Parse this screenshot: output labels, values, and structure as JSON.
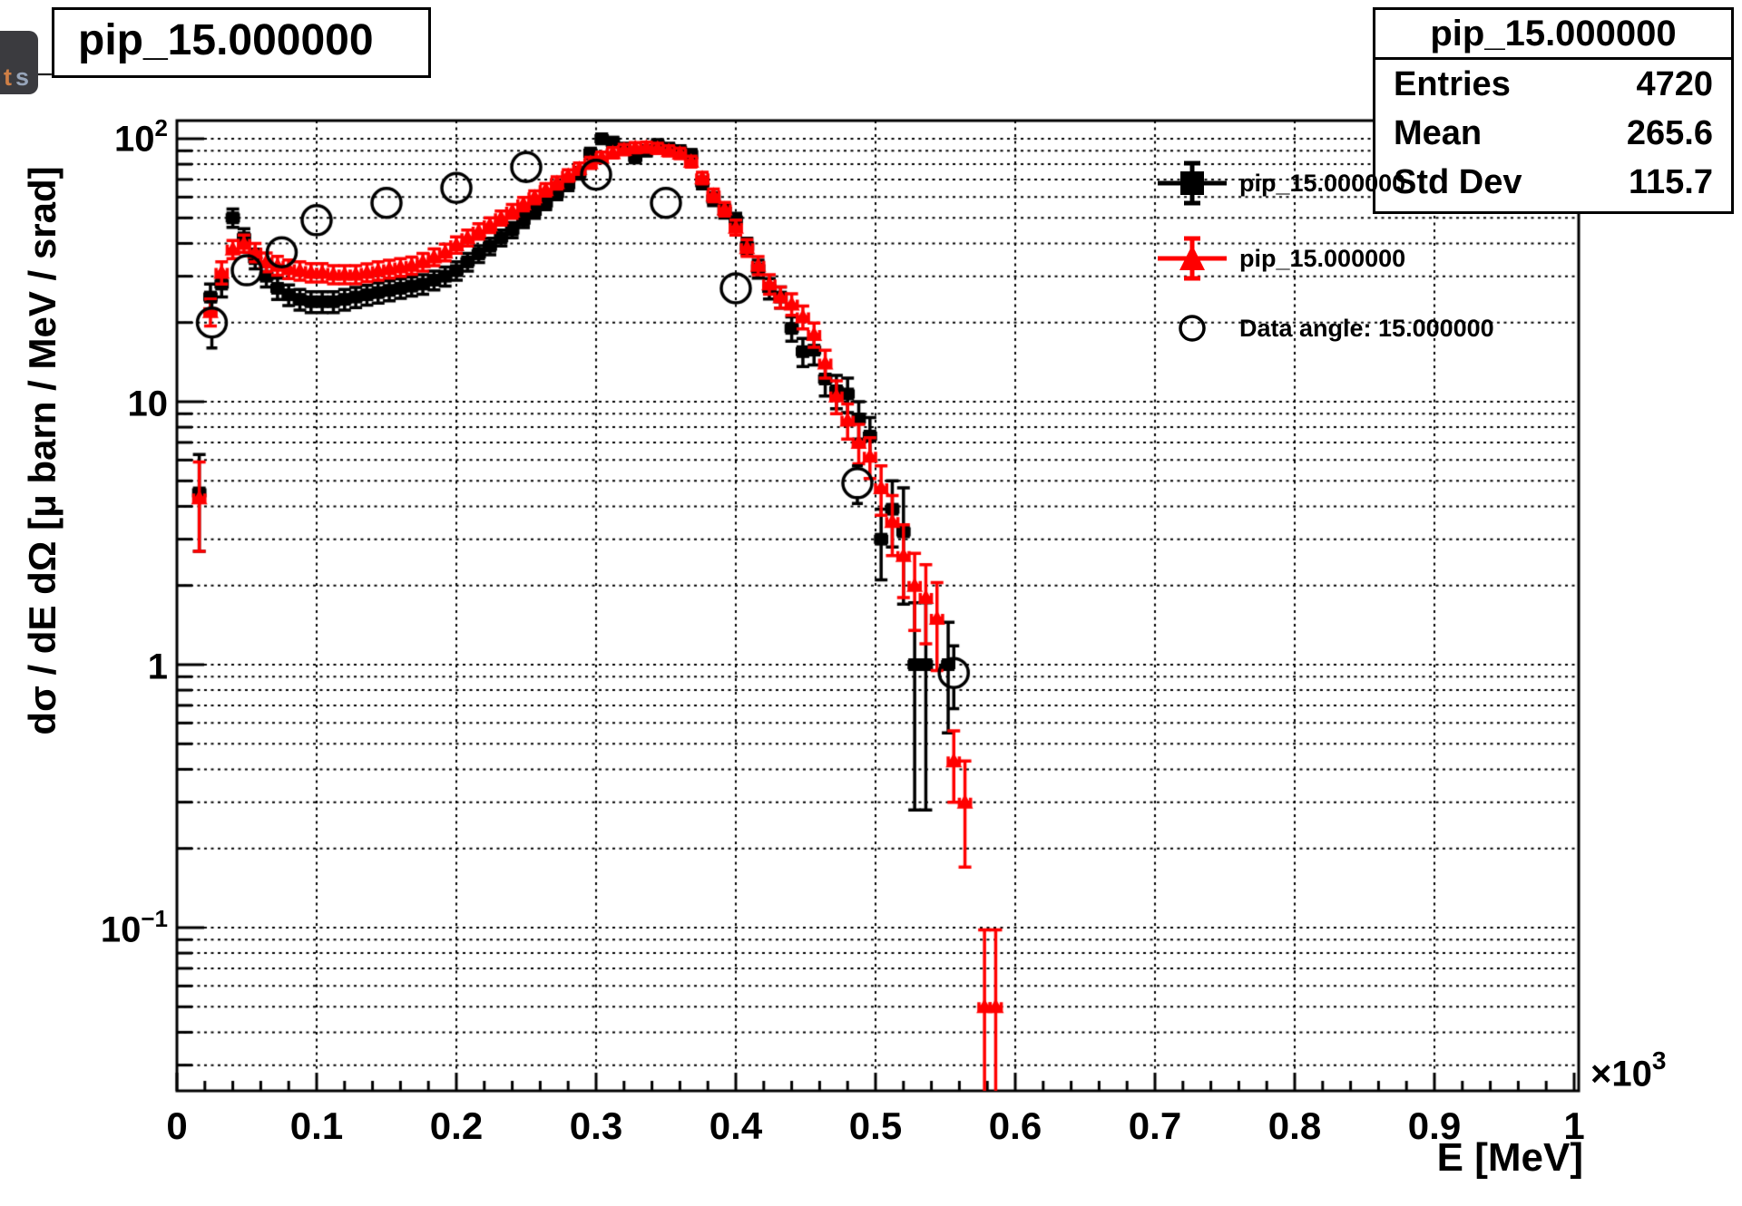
{
  "tab": {
    "char1": "t",
    "char2": "s"
  },
  "title_box": {
    "text": "pip_15.000000"
  },
  "stats_box": {
    "title": "pip_15.000000",
    "rows": [
      {
        "label": "Entries",
        "value": "4720"
      },
      {
        "label": "Mean",
        "value": "265.6"
      },
      {
        "label": "Std Dev",
        "value": "115.7"
      }
    ]
  },
  "legend": {
    "entries": [
      {
        "label": "pip_15.000000",
        "marker": "black-square-errorbar"
      },
      {
        "label": "pip_15.000000",
        "marker": "red-triangle-errorbar"
      },
      {
        "label": "Data angle: 15.000000",
        "marker": "open-circle"
      }
    ]
  },
  "axes": {
    "x_title": "E [MeV]",
    "x_multiplier_base": "×10",
    "x_multiplier_exp": "3",
    "y_title": "dσ / dE dΩ [μ barn / MeV / srad]",
    "x_tick_labels": [
      "0",
      "0.1",
      "0.2",
      "0.3",
      "0.4",
      "0.5",
      "0.6",
      "0.7",
      "0.8",
      "0.9",
      "1"
    ],
    "y_tick_labels": [
      {
        "base": "10",
        "exp": "2"
      },
      {
        "base": "10",
        "exp": ""
      },
      {
        "base": "1",
        "exp": ""
      },
      {
        "base": "10",
        "exp": "−1"
      }
    ]
  },
  "chart_data": {
    "type": "scatter",
    "title": "pip_15.000000",
    "xlabel": "E [MeV] (axis shown as 0-1 ×10³)",
    "ylabel": "dσ / dE dΩ [μ barn / MeV / srad]",
    "x_range": [
      0,
      1000
    ],
    "y_range": [
      0.0235,
      117
    ],
    "y_scale": "log",
    "grid": "dotted, vertical at 0.1 majors, horizontal at every log minor",
    "legend_position": "top-right, transparent",
    "series": [
      {
        "name": "pip_15.000000",
        "marker": "square",
        "color": "#000000",
        "points": [
          [
            16,
            4.5,
            1.8
          ],
          [
            24,
            25,
            3
          ],
          [
            32,
            28,
            3
          ],
          [
            40,
            50,
            4
          ],
          [
            48,
            42,
            3.5
          ],
          [
            56,
            35,
            3
          ],
          [
            64,
            30,
            2.7
          ],
          [
            72,
            27,
            2.5
          ],
          [
            80,
            25.5,
            2.3
          ],
          [
            88,
            24.5,
            2.2
          ],
          [
            96,
            24,
            2.2
          ],
          [
            104,
            24,
            2.2
          ],
          [
            112,
            24,
            2.2
          ],
          [
            120,
            24.5,
            2.2
          ],
          [
            128,
            25,
            2.2
          ],
          [
            136,
            25.5,
            2.2
          ],
          [
            144,
            26,
            2.3
          ],
          [
            152,
            26.5,
            2.3
          ],
          [
            160,
            27,
            2.3
          ],
          [
            168,
            27.5,
            2.3
          ],
          [
            176,
            28,
            2.4
          ],
          [
            184,
            29,
            2.4
          ],
          [
            192,
            30,
            2.5
          ],
          [
            200,
            31.5,
            2.5
          ],
          [
            208,
            34,
            2.6
          ],
          [
            216,
            36.5,
            2.7
          ],
          [
            224,
            39,
            2.8
          ],
          [
            232,
            42,
            2.9
          ],
          [
            240,
            45,
            3
          ],
          [
            248,
            49,
            3.1
          ],
          [
            256,
            53,
            3.2
          ],
          [
            264,
            57,
            3.3
          ],
          [
            272,
            62,
            3.4
          ],
          [
            280,
            67,
            3.5
          ],
          [
            288,
            74,
            3.7
          ],
          [
            296,
            88,
            4
          ],
          [
            304,
            100,
            4.2
          ],
          [
            312,
            97,
            4.1
          ],
          [
            320,
            92,
            4
          ],
          [
            328,
            85,
            3.9
          ],
          [
            336,
            90,
            4
          ],
          [
            344,
            95,
            4.1
          ],
          [
            352,
            92,
            4
          ],
          [
            360,
            90,
            4
          ],
          [
            368,
            87,
            3.9
          ],
          [
            376,
            68,
            3.5
          ],
          [
            384,
            59,
            3.3
          ],
          [
            392,
            53,
            3.1
          ],
          [
            400,
            49,
            3
          ],
          [
            408,
            39,
            2.8
          ],
          [
            416,
            32,
            2.5
          ],
          [
            424,
            27,
            2.4
          ],
          [
            432,
            25,
            2.3
          ],
          [
            440,
            19,
            2
          ],
          [
            448,
            15.5,
            1.9
          ],
          [
            456,
            15.7,
            1.9
          ],
          [
            464,
            12.2,
            1.7
          ],
          [
            472,
            11,
            1.6
          ],
          [
            480,
            10.7,
            1.6
          ],
          [
            488,
            8.6,
            1.4
          ],
          [
            496,
            7.4,
            1.3
          ],
          [
            504,
            3.0,
            0.9
          ],
          [
            512,
            3.9,
            1.1
          ],
          [
            520,
            3.2,
            1.5
          ],
          [
            528,
            1.0,
            0.72
          ],
          [
            536,
            1.0,
            0.72
          ],
          [
            552,
            1.0,
            0.45
          ]
        ]
      },
      {
        "name": "pip_15.000000",
        "marker": "triangle-up",
        "color": "#ff0000",
        "points": [
          [
            16,
            4.3,
            1.6
          ],
          [
            24,
            22,
            2.6
          ],
          [
            32,
            31,
            3
          ],
          [
            40,
            38,
            3
          ],
          [
            48,
            40,
            3
          ],
          [
            56,
            37,
            3
          ],
          [
            64,
            34,
            2.8
          ],
          [
            72,
            33,
            2.7
          ],
          [
            80,
            32,
            2.6
          ],
          [
            88,
            31.5,
            2.5
          ],
          [
            96,
            31,
            2.5
          ],
          [
            104,
            31,
            2.5
          ],
          [
            112,
            30.5,
            2.4
          ],
          [
            120,
            30.5,
            2.4
          ],
          [
            128,
            30.5,
            2.4
          ],
          [
            136,
            31,
            2.4
          ],
          [
            144,
            31.5,
            2.5
          ],
          [
            152,
            32,
            2.5
          ],
          [
            160,
            32.5,
            2.5
          ],
          [
            168,
            33,
            2.5
          ],
          [
            176,
            34,
            2.6
          ],
          [
            184,
            35.5,
            2.6
          ],
          [
            192,
            37,
            2.7
          ],
          [
            200,
            39.5,
            2.8
          ],
          [
            208,
            42,
            2.9
          ],
          [
            216,
            44.5,
            3
          ],
          [
            224,
            47,
            3
          ],
          [
            232,
            50,
            3.1
          ],
          [
            240,
            53,
            3.2
          ],
          [
            248,
            56.5,
            3.3
          ],
          [
            256,
            60,
            3.4
          ],
          [
            264,
            64,
            3.5
          ],
          [
            272,
            68,
            3.6
          ],
          [
            280,
            72.5,
            3.7
          ],
          [
            288,
            77,
            3.8
          ],
          [
            296,
            81,
            3.9
          ],
          [
            304,
            85,
            4
          ],
          [
            312,
            88.5,
            4
          ],
          [
            320,
            91,
            4.1
          ],
          [
            328,
            92.5,
            4.1
          ],
          [
            336,
            93,
            4.1
          ],
          [
            344,
            92,
            4.1
          ],
          [
            352,
            90,
            4
          ],
          [
            360,
            88,
            4
          ],
          [
            368,
            82,
            3.9
          ],
          [
            376,
            71,
            3.6
          ],
          [
            384,
            61,
            3.4
          ],
          [
            392,
            54,
            3.2
          ],
          [
            400,
            46,
            3
          ],
          [
            408,
            38.5,
            2.8
          ],
          [
            416,
            33,
            2.6
          ],
          [
            424,
            28,
            2.4
          ],
          [
            432,
            25,
            2.3
          ],
          [
            440,
            23.5,
            2.2
          ],
          [
            448,
            21,
            2.1
          ],
          [
            456,
            18,
            1.9
          ],
          [
            464,
            14,
            1.7
          ],
          [
            472,
            10.5,
            1.5
          ],
          [
            480,
            8.5,
            1.3
          ],
          [
            488,
            7,
            1.2
          ],
          [
            496,
            6.2,
            1.1
          ],
          [
            504,
            4.7,
            1
          ],
          [
            512,
            3.5,
            0.9
          ],
          [
            520,
            2.6,
            0.8
          ],
          [
            528,
            2.0,
            0.65
          ],
          [
            536,
            1.8,
            0.6
          ],
          [
            544,
            1.5,
            0.55
          ],
          [
            556,
            0.43,
            0.13
          ],
          [
            564,
            0.3,
            0.13
          ],
          [
            578,
            0.05,
            0.048
          ],
          [
            586,
            0.05,
            0.048
          ]
        ]
      },
      {
        "name": "Data angle: 15.000000",
        "marker": "open-circle",
        "color": "#000000",
        "points": [
          [
            25,
            20,
            4
          ],
          [
            50,
            31.6,
            2.8
          ],
          [
            75,
            37,
            2.8
          ],
          [
            100,
            49,
            3.2
          ],
          [
            150,
            57,
            3.4
          ],
          [
            200,
            65,
            3.6
          ],
          [
            250,
            78,
            4
          ],
          [
            300,
            73,
            3.8
          ],
          [
            350,
            57,
            3.4
          ],
          [
            400,
            27,
            2.2
          ],
          [
            487,
            4.9,
            0.8
          ],
          [
            556,
            0.93,
            0.25
          ]
        ]
      }
    ]
  }
}
